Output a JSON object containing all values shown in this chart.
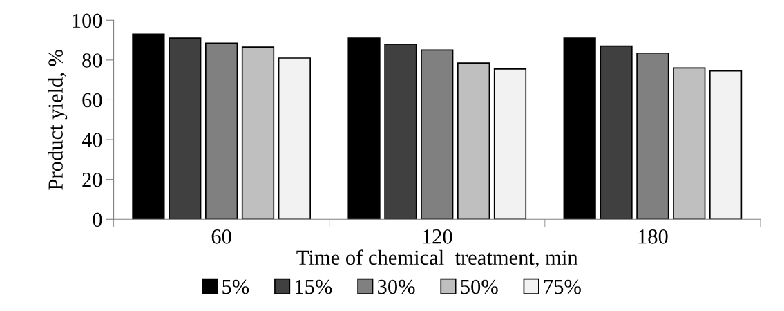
{
  "chart_data": {
    "type": "bar",
    "xlabel": "Time of chemical  treatment, min",
    "ylabel": "Product yield, %",
    "categories": [
      "60",
      "120",
      "180"
    ],
    "series": [
      {
        "name": "5%",
        "color": "#000000",
        "values": [
          93,
          91,
          91
        ]
      },
      {
        "name": "15%",
        "color": "#404040",
        "values": [
          91,
          88,
          87
        ]
      },
      {
        "name": "30%",
        "color": "#808080",
        "values": [
          88.5,
          85,
          83.5
        ]
      },
      {
        "name": "50%",
        "color": "#bfbfbf",
        "values": [
          86.5,
          78.5,
          76
        ]
      },
      {
        "name": "75%",
        "color": "#f2f2f2",
        "values": [
          81,
          75.5,
          74.5
        ]
      }
    ],
    "ylim": [
      0,
      100
    ],
    "yticks": [
      0,
      20,
      40,
      60,
      80,
      100
    ],
    "grid": false,
    "legend": "bottom"
  }
}
